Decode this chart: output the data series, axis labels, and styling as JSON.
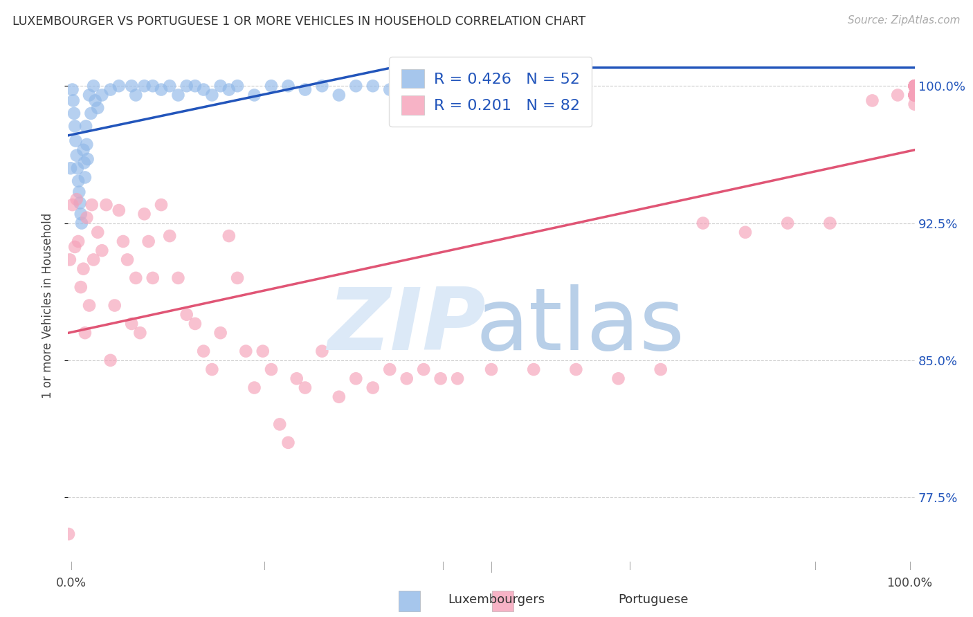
{
  "title": "LUXEMBOURGER VS PORTUGUESE 1 OR MORE VEHICLES IN HOUSEHOLD CORRELATION CHART",
  "source": "Source: ZipAtlas.com",
  "ylabel": "1 or more Vehicles in Household",
  "xlim": [
    0.0,
    100.0
  ],
  "ylim": [
    74.0,
    102.0
  ],
  "yticks": [
    77.5,
    85.0,
    92.5,
    100.0
  ],
  "ytick_labels": [
    "77.5%",
    "85.0%",
    "92.5%",
    "100.0%"
  ],
  "lux_color": "#90b8e8",
  "port_color": "#f5a0b8",
  "lux_line_color": "#2255bb",
  "port_line_color": "#e05575",
  "legend_color": "#2255bb",
  "lux_R": "0.426",
  "lux_N": "52",
  "port_R": "0.201",
  "port_N": "82",
  "watermark_zip_color": "#dce9f7",
  "watermark_atlas_color": "#b8cfe8",
  "lux_x": [
    0.3,
    0.5,
    0.6,
    0.7,
    0.8,
    0.9,
    1.0,
    1.1,
    1.2,
    1.3,
    1.4,
    1.5,
    1.6,
    1.8,
    1.9,
    2.0,
    2.1,
    2.2,
    2.3,
    2.5,
    2.7,
    3.0,
    3.2,
    3.5,
    4.0,
    5.0,
    6.0,
    7.5,
    8.0,
    9.0,
    10.0,
    11.0,
    12.0,
    13.0,
    14.0,
    15.0,
    16.0,
    17.0,
    18.0,
    19.0,
    20.0,
    22.0,
    24.0,
    26.0,
    28.0,
    30.0,
    32.0,
    34.0,
    36.0,
    38.0,
    39.0,
    40.0
  ],
  "lux_y": [
    95.5,
    99.8,
    99.2,
    98.5,
    97.8,
    97.0,
    96.2,
    95.5,
    94.8,
    94.2,
    93.6,
    93.0,
    92.5,
    96.5,
    95.8,
    95.0,
    97.8,
    96.8,
    96.0,
    99.5,
    98.5,
    100.0,
    99.2,
    98.8,
    99.5,
    99.8,
    100.0,
    100.0,
    99.5,
    100.0,
    100.0,
    99.8,
    100.0,
    99.5,
    100.0,
    100.0,
    99.8,
    99.5,
    100.0,
    99.8,
    100.0,
    99.5,
    100.0,
    100.0,
    99.8,
    100.0,
    99.5,
    100.0,
    100.0,
    99.8,
    99.5,
    100.0
  ],
  "port_x": [
    0.05,
    0.2,
    0.5,
    0.8,
    1.0,
    1.2,
    1.5,
    1.8,
    2.0,
    2.2,
    2.5,
    2.8,
    3.0,
    3.5,
    4.0,
    4.5,
    5.0,
    5.5,
    6.0,
    6.5,
    7.0,
    7.5,
    8.0,
    8.5,
    9.0,
    9.5,
    10.0,
    11.0,
    12.0,
    13.0,
    14.0,
    15.0,
    16.0,
    17.0,
    18.0,
    19.0,
    20.0,
    21.0,
    22.0,
    23.0,
    24.0,
    25.0,
    26.0,
    27.0,
    28.0,
    30.0,
    32.0,
    34.0,
    36.0,
    38.0,
    40.0,
    42.0,
    44.0,
    46.0,
    50.0,
    55.0,
    60.0,
    65.0,
    70.0,
    75.0,
    80.0,
    85.0,
    90.0,
    95.0,
    98.0,
    100.0,
    100.0,
    100.0,
    100.0,
    100.0,
    100.0,
    100.0,
    100.0,
    100.0,
    100.0,
    100.0,
    100.0,
    100.0,
    100.0,
    100.0,
    100.0,
    100.0
  ],
  "port_y": [
    75.5,
    90.5,
    93.5,
    91.2,
    93.8,
    91.5,
    89.0,
    90.0,
    86.5,
    92.8,
    88.0,
    93.5,
    90.5,
    92.0,
    91.0,
    93.5,
    85.0,
    88.0,
    93.2,
    91.5,
    90.5,
    87.0,
    89.5,
    86.5,
    93.0,
    91.5,
    89.5,
    93.5,
    91.8,
    89.5,
    87.5,
    87.0,
    85.5,
    84.5,
    86.5,
    91.8,
    89.5,
    85.5,
    83.5,
    85.5,
    84.5,
    81.5,
    80.5,
    84.0,
    83.5,
    85.5,
    83.0,
    84.0,
    83.5,
    84.5,
    84.0,
    84.5,
    84.0,
    84.0,
    84.5,
    84.5,
    84.5,
    84.0,
    84.5,
    92.5,
    92.0,
    92.5,
    92.5,
    99.2,
    99.5,
    99.0,
    99.5,
    100.0,
    99.5,
    100.0,
    99.5,
    100.0,
    99.5,
    100.0,
    99.5,
    100.0,
    99.5,
    100.0,
    99.5,
    100.0,
    99.5,
    100.0
  ]
}
